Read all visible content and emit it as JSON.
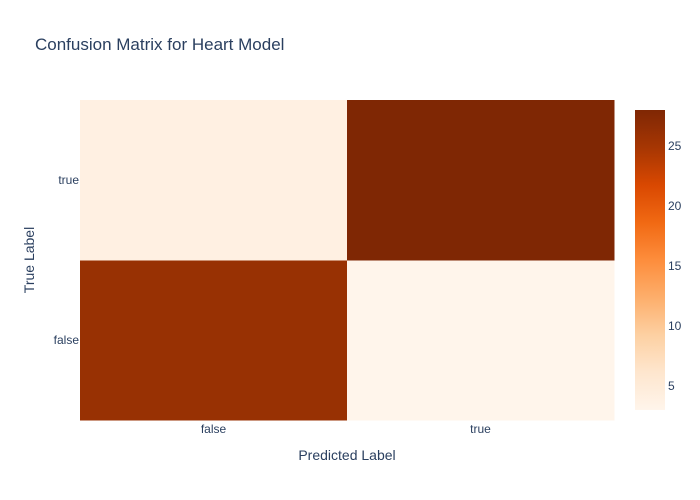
{
  "chart_data": {
    "type": "heatmap",
    "title": "Confusion Matrix for Heart Model",
    "xlabel": "Predicted Label",
    "ylabel": "True Label",
    "x_categories": [
      "false",
      "true"
    ],
    "y_categories": [
      "false",
      "true"
    ],
    "z": [
      [
        26,
        3
      ],
      [
        4,
        28
      ]
    ],
    "zlim": [
      3,
      28
    ],
    "colorscale": "Oranges",
    "colorscale_stops": [
      "#fff5eb",
      "#fee6ce",
      "#fdd0a2",
      "#fdae6b",
      "#fd8d3c",
      "#f16913",
      "#d94801",
      "#a63603",
      "#7f2704"
    ],
    "colorbar_ticks": [
      5,
      10,
      15,
      20,
      25
    ],
    "grid": false
  }
}
